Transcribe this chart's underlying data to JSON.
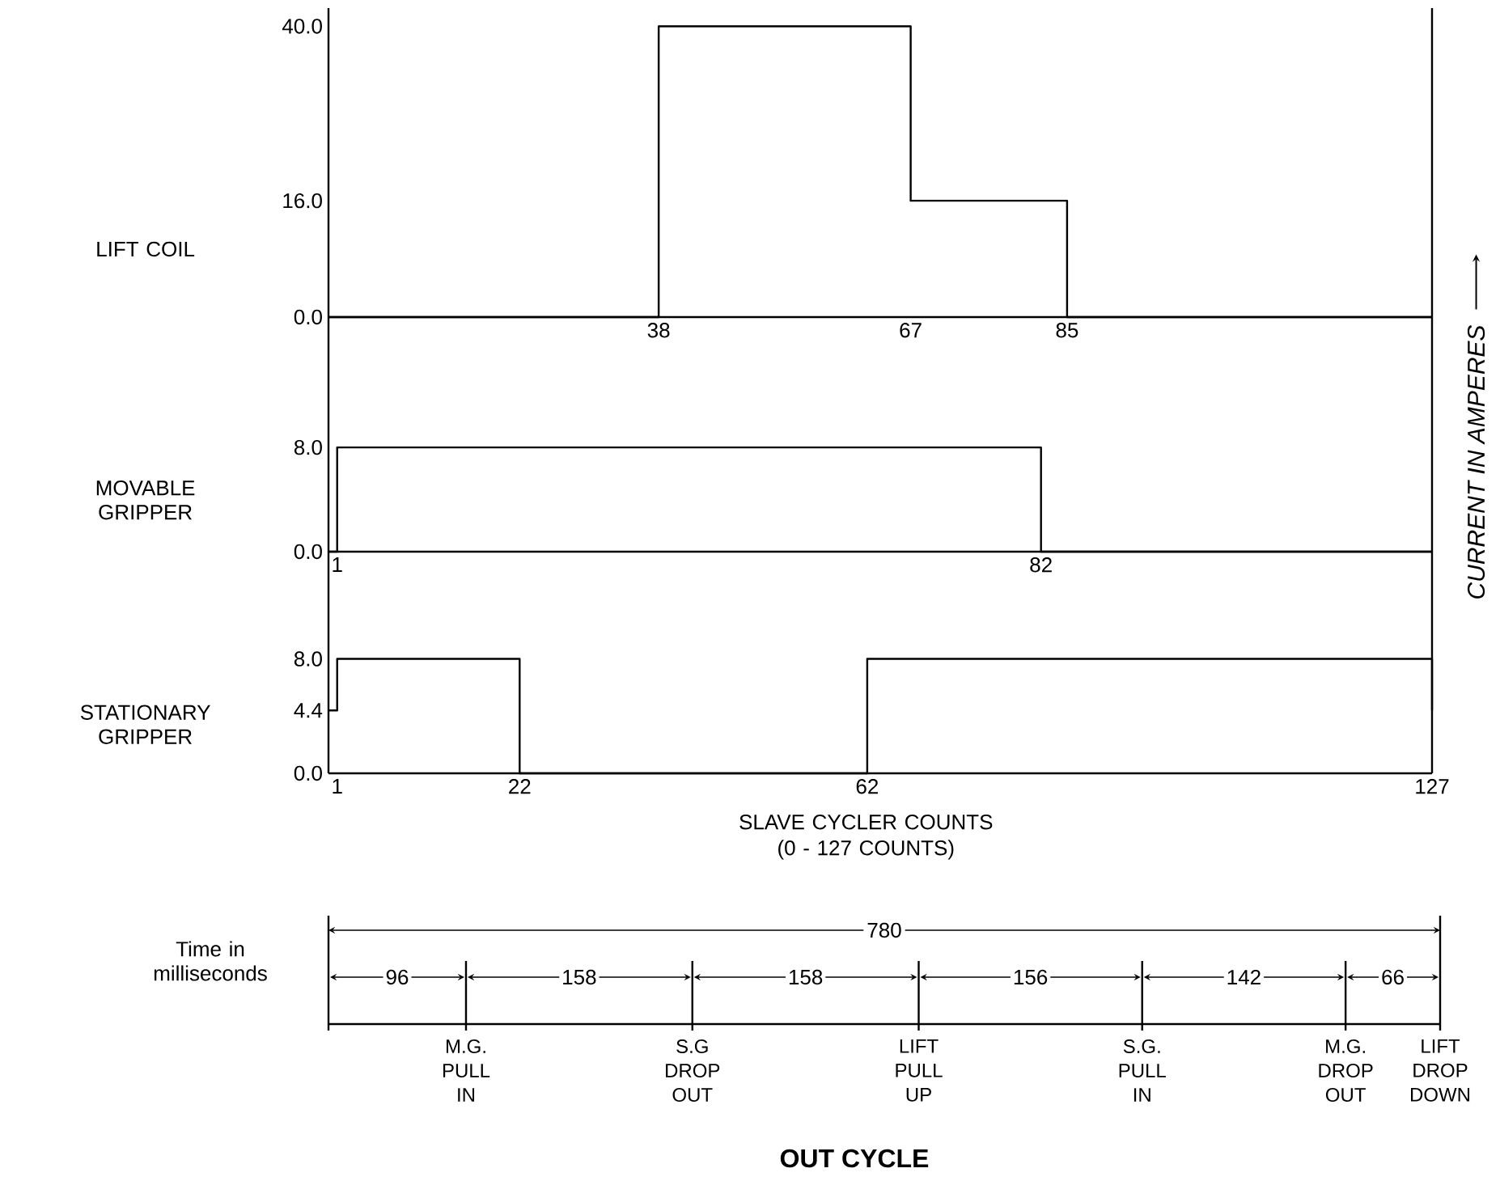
{
  "chart_data": [
    {
      "type": "step",
      "ylabel": "LIFT COIL",
      "y2label": "CURRENT IN AMPERES",
      "xlim": [
        0,
        127
      ],
      "ylim": [
        0,
        42.5
      ],
      "xticks": [
        38,
        67,
        85
      ],
      "yticks": [
        {
          "value": 0,
          "label": "0.0"
        },
        {
          "value": 16,
          "label": "16.0"
        },
        {
          "value": 40,
          "label": "40.0"
        }
      ],
      "series": [
        {
          "color": "#000000",
          "x": [
            0,
            38,
            67,
            85,
            127
          ],
          "values": [
            0,
            40,
            16,
            0,
            0
          ]
        }
      ]
    },
    {
      "type": "step",
      "ylabel": "MOVABLE GRIPPER",
      "xlim": [
        0,
        127
      ],
      "ylim": [
        0,
        18
      ],
      "xticks": [
        1,
        82
      ],
      "yticks": [
        {
          "value": 0,
          "label": "0.0"
        },
        {
          "value": 8,
          "label": "8.0"
        }
      ],
      "series": [
        {
          "color": "#000000",
          "x": [
            0,
            1,
            82,
            127
          ],
          "values": [
            0,
            8,
            0,
            0
          ]
        }
      ]
    },
    {
      "type": "step",
      "ylabel": "STATIONARY GRIPPER",
      "xlabel": "SLAVE CYCLER COUNTS (0 - 127 COUNTS)",
      "xlim": [
        0,
        127
      ],
      "ylim": [
        0,
        15.5
      ],
      "xticks": [
        1,
        22,
        62,
        127
      ],
      "yticks": [
        {
          "value": 0,
          "label": "0.0"
        },
        {
          "value": 4.4,
          "label": "4.4"
        },
        {
          "value": 8,
          "label": "8.0"
        }
      ],
      "series": [
        {
          "color": "#000000",
          "x": [
            0,
            1,
            22,
            62,
            127
          ],
          "values": [
            4.4,
            8,
            0,
            8,
            4.4
          ]
        }
      ]
    },
    {
      "type": "other",
      "title": "OUT CYCLE",
      "ylabel": "Time in milliseconds",
      "totals": [
        "780"
      ],
      "categories": [
        "M.G. PULL IN",
        "S.G DROP OUT",
        "LIFT PULL UP",
        "S.G. PULL IN",
        "M.G. DROP OUT",
        "LIFT DROP DOWN"
      ],
      "values": [
        96,
        158,
        158,
        156,
        142,
        66
      ],
      "data_labels": true
    }
  ]
}
